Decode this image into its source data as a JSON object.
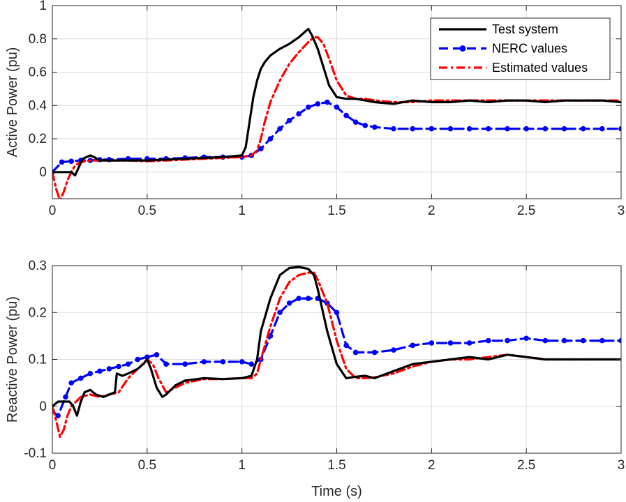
{
  "chart_data": [
    {
      "type": "line",
      "title": "",
      "xlabel": "",
      "ylabel": "Active Power (pu)",
      "xlim": [
        0,
        3
      ],
      "ylim": [
        -0.16,
        1.0
      ],
      "xticks": [
        0,
        0.5,
        1,
        1.5,
        2,
        2.5,
        3
      ],
      "xtick_labels": [
        "0",
        "0.5",
        "1",
        "1.5",
        "2",
        "2.5",
        "3"
      ],
      "yticks": [
        0,
        0.2,
        0.4,
        0.6,
        0.8,
        1
      ],
      "ytick_labels": [
        "0",
        "0.2",
        "0.4",
        "0.6",
        "0.8",
        "1"
      ],
      "grid": true,
      "legend": {
        "position": "top-right",
        "entries": [
          "Test system",
          "NERC values",
          "Estimated values"
        ]
      },
      "series": [
        {
          "name": "Test system",
          "color": "#000000",
          "style": "solid",
          "marker": "none",
          "x": [
            0,
            0.02,
            0.05,
            0.08,
            0.1,
            0.12,
            0.14,
            0.16,
            0.18,
            0.2,
            0.22,
            0.25,
            0.3,
            0.4,
            0.5,
            0.6,
            0.7,
            0.8,
            0.9,
            1.0,
            1.02,
            1.04,
            1.06,
            1.08,
            1.1,
            1.12,
            1.15,
            1.2,
            1.25,
            1.3,
            1.33,
            1.35,
            1.37,
            1.4,
            1.43,
            1.46,
            1.5,
            1.55,
            1.6,
            1.65,
            1.7,
            1.8,
            1.9,
            2.0,
            2.1,
            2.2,
            2.3,
            2.4,
            2.5,
            2.6,
            2.7,
            2.8,
            2.9,
            3.0
          ],
          "y": [
            0.0,
            0.0,
            0.0,
            0.0,
            0.0,
            -0.02,
            0.03,
            0.08,
            0.09,
            0.1,
            0.09,
            0.07,
            0.07,
            0.07,
            0.07,
            0.075,
            0.08,
            0.085,
            0.09,
            0.1,
            0.15,
            0.3,
            0.45,
            0.55,
            0.62,
            0.66,
            0.7,
            0.74,
            0.77,
            0.81,
            0.84,
            0.86,
            0.82,
            0.74,
            0.63,
            0.52,
            0.45,
            0.44,
            0.44,
            0.43,
            0.42,
            0.41,
            0.43,
            0.42,
            0.42,
            0.43,
            0.42,
            0.43,
            0.43,
            0.42,
            0.43,
            0.43,
            0.43,
            0.42
          ]
        },
        {
          "name": "NERC values",
          "color": "#0000ff",
          "style": "dashed",
          "marker": "dot",
          "x": [
            0,
            0.05,
            0.1,
            0.15,
            0.2,
            0.25,
            0.3,
            0.4,
            0.5,
            0.6,
            0.7,
            0.8,
            0.9,
            1.0,
            1.05,
            1.1,
            1.15,
            1.2,
            1.25,
            1.3,
            1.35,
            1.4,
            1.45,
            1.5,
            1.55,
            1.6,
            1.65,
            1.7,
            1.8,
            1.9,
            2.0,
            2.1,
            2.2,
            2.3,
            2.4,
            2.5,
            2.6,
            2.7,
            2.8,
            2.9,
            3.0
          ],
          "y": [
            0.0,
            0.06,
            0.065,
            0.07,
            0.07,
            0.075,
            0.075,
            0.08,
            0.08,
            0.08,
            0.085,
            0.09,
            0.09,
            0.09,
            0.1,
            0.14,
            0.2,
            0.26,
            0.31,
            0.35,
            0.39,
            0.41,
            0.42,
            0.39,
            0.34,
            0.3,
            0.28,
            0.27,
            0.26,
            0.26,
            0.26,
            0.26,
            0.26,
            0.26,
            0.26,
            0.26,
            0.26,
            0.26,
            0.26,
            0.26,
            0.26
          ]
        },
        {
          "name": "Estimated values",
          "color": "#ff0000",
          "style": "dashdot",
          "marker": "none",
          "x": [
            0,
            0.02,
            0.04,
            0.06,
            0.08,
            0.1,
            0.12,
            0.15,
            0.2,
            0.3,
            0.4,
            0.5,
            0.6,
            0.7,
            0.8,
            0.9,
            1.0,
            1.05,
            1.08,
            1.1,
            1.12,
            1.15,
            1.2,
            1.25,
            1.3,
            1.35,
            1.38,
            1.4,
            1.43,
            1.46,
            1.5,
            1.55,
            1.6,
            1.65,
            1.7,
            1.8,
            1.9,
            2.0,
            2.1,
            2.2,
            2.3,
            2.4,
            2.5,
            2.6,
            2.7,
            2.8,
            2.9,
            3.0
          ],
          "y": [
            0.0,
            -0.1,
            -0.17,
            -0.12,
            -0.05,
            0.0,
            0.04,
            0.06,
            0.07,
            0.07,
            0.07,
            0.065,
            0.07,
            0.075,
            0.08,
            0.085,
            0.09,
            0.1,
            0.13,
            0.2,
            0.3,
            0.42,
            0.55,
            0.65,
            0.72,
            0.78,
            0.81,
            0.81,
            0.77,
            0.68,
            0.55,
            0.46,
            0.44,
            0.44,
            0.43,
            0.42,
            0.42,
            0.43,
            0.43,
            0.43,
            0.43,
            0.43,
            0.43,
            0.43,
            0.43,
            0.43,
            0.43,
            0.43
          ]
        }
      ]
    },
    {
      "type": "line",
      "title": "",
      "xlabel": "Time (s)",
      "ylabel": "Reactive Power (pu)",
      "xlim": [
        0,
        3
      ],
      "ylim": [
        -0.1,
        0.3
      ],
      "xticks": [
        0,
        0.5,
        1,
        1.5,
        2,
        2.5,
        3
      ],
      "xtick_labels": [
        "0",
        "0.5",
        "1",
        "1.5",
        "2",
        "2.5",
        "3"
      ],
      "yticks": [
        -0.1,
        0,
        0.1,
        0.2,
        0.3
      ],
      "ytick_labels": [
        "-0.1",
        "0",
        "0.1",
        "0.2",
        "0.3"
      ],
      "grid": true,
      "legend": null,
      "series": [
        {
          "name": "Test system",
          "color": "#000000",
          "style": "solid",
          "marker": "none",
          "x": [
            0,
            0.03,
            0.06,
            0.09,
            0.11,
            0.12,
            0.13,
            0.15,
            0.17,
            0.2,
            0.23,
            0.27,
            0.3,
            0.33,
            0.34,
            0.37,
            0.4,
            0.45,
            0.48,
            0.5,
            0.52,
            0.55,
            0.58,
            0.6,
            0.65,
            0.7,
            0.8,
            0.9,
            1.0,
            1.05,
            1.08,
            1.1,
            1.15,
            1.2,
            1.25,
            1.3,
            1.35,
            1.38,
            1.4,
            1.45,
            1.5,
            1.55,
            1.6,
            1.65,
            1.7,
            1.8,
            1.9,
            2.0,
            2.1,
            2.2,
            2.3,
            2.4,
            2.5,
            2.6,
            2.7,
            2.8,
            2.9,
            3.0
          ],
          "y": [
            0.0,
            0.01,
            0.01,
            0.01,
            0.0,
            -0.01,
            -0.02,
            0.01,
            0.03,
            0.035,
            0.025,
            0.02,
            0.025,
            0.03,
            0.07,
            0.065,
            0.07,
            0.08,
            0.09,
            0.1,
            0.08,
            0.04,
            0.02,
            0.025,
            0.045,
            0.055,
            0.06,
            0.058,
            0.06,
            0.065,
            0.1,
            0.16,
            0.23,
            0.28,
            0.295,
            0.297,
            0.293,
            0.28,
            0.25,
            0.16,
            0.09,
            0.06,
            0.063,
            0.065,
            0.06,
            0.075,
            0.09,
            0.095,
            0.1,
            0.105,
            0.1,
            0.11,
            0.105,
            0.1,
            0.1,
            0.1,
            0.1,
            0.1
          ]
        },
        {
          "name": "NERC values",
          "color": "#0000ff",
          "style": "dashed",
          "marker": "dot",
          "x": [
            0,
            0.03,
            0.07,
            0.1,
            0.15,
            0.2,
            0.25,
            0.3,
            0.35,
            0.4,
            0.45,
            0.5,
            0.55,
            0.6,
            0.7,
            0.8,
            0.9,
            1.0,
            1.05,
            1.1,
            1.15,
            1.2,
            1.25,
            1.3,
            1.35,
            1.4,
            1.45,
            1.5,
            1.55,
            1.6,
            1.7,
            1.8,
            1.9,
            2.0,
            2.1,
            2.2,
            2.3,
            2.4,
            2.5,
            2.6,
            2.7,
            2.8,
            2.9,
            3.0
          ],
          "y": [
            -0.01,
            -0.02,
            0.02,
            0.05,
            0.06,
            0.07,
            0.075,
            0.08,
            0.085,
            0.09,
            0.1,
            0.105,
            0.11,
            0.09,
            0.09,
            0.095,
            0.095,
            0.095,
            0.09,
            0.1,
            0.15,
            0.2,
            0.22,
            0.23,
            0.23,
            0.23,
            0.22,
            0.2,
            0.13,
            0.115,
            0.115,
            0.12,
            0.13,
            0.135,
            0.135,
            0.135,
            0.14,
            0.14,
            0.145,
            0.14,
            0.14,
            0.14,
            0.14,
            0.14
          ]
        },
        {
          "name": "Estimated values",
          "color": "#ff0000",
          "style": "dashdot",
          "marker": "none",
          "x": [
            0,
            0.02,
            0.04,
            0.06,
            0.08,
            0.1,
            0.15,
            0.2,
            0.25,
            0.3,
            0.35,
            0.4,
            0.45,
            0.5,
            0.53,
            0.56,
            0.6,
            0.65,
            0.7,
            0.8,
            0.9,
            1.0,
            1.05,
            1.08,
            1.1,
            1.15,
            1.2,
            1.25,
            1.3,
            1.35,
            1.38,
            1.4,
            1.45,
            1.5,
            1.55,
            1.6,
            1.65,
            1.7,
            1.8,
            1.9,
            2.0,
            2.1,
            2.2,
            2.3,
            2.4,
            2.5,
            2.6,
            2.7,
            2.8,
            2.9,
            3.0
          ],
          "y": [
            0.0,
            -0.03,
            -0.065,
            -0.05,
            -0.02,
            0.0,
            0.02,
            0.025,
            0.02,
            0.025,
            0.03,
            0.06,
            0.08,
            0.1,
            0.09,
            0.06,
            0.03,
            0.04,
            0.05,
            0.058,
            0.058,
            0.06,
            0.06,
            0.07,
            0.1,
            0.17,
            0.23,
            0.265,
            0.28,
            0.285,
            0.285,
            0.27,
            0.22,
            0.14,
            0.08,
            0.06,
            0.06,
            0.062,
            0.07,
            0.085,
            0.095,
            0.1,
            0.1,
            0.105,
            0.11,
            0.105,
            0.1,
            0.1,
            0.1,
            0.1,
            0.1
          ]
        }
      ]
    }
  ]
}
